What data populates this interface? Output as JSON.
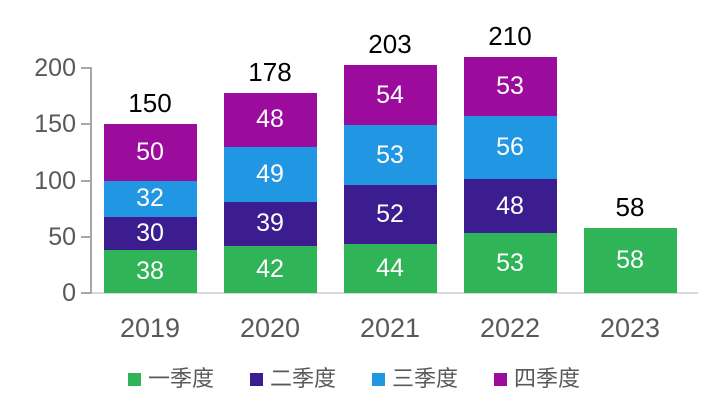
{
  "chart_data": {
    "type": "bar",
    "stacked": true,
    "title": "",
    "xlabel": "",
    "ylabel": "",
    "categories": [
      "2019",
      "2020",
      "2021",
      "2022",
      "2023"
    ],
    "series": [
      {
        "name": "一季度",
        "color": "#2FB457",
        "values": [
          38,
          42,
          44,
          53,
          58
        ]
      },
      {
        "name": "二季度",
        "color": "#3B1D8F",
        "values": [
          30,
          39,
          52,
          48,
          null
        ]
      },
      {
        "name": "三季度",
        "color": "#2196E3",
        "values": [
          32,
          49,
          53,
          56,
          null
        ]
      },
      {
        "name": "四季度",
        "color": "#9C0C9C",
        "values": [
          50,
          48,
          54,
          53,
          null
        ]
      }
    ],
    "totals": [
      150,
      178,
      203,
      210,
      58
    ],
    "y_ticks": [
      0,
      50,
      100,
      150,
      200
    ],
    "ylim": [
      0,
      200
    ],
    "grid": false,
    "legend_position": "bottom",
    "colors": {
      "axis": "#A6A6A6",
      "baseline": "#D9D9D9",
      "axis_label": "#595959",
      "total_label": "#000000",
      "value_label": "#FFFFFF",
      "background": "#FFFFFF"
    }
  }
}
